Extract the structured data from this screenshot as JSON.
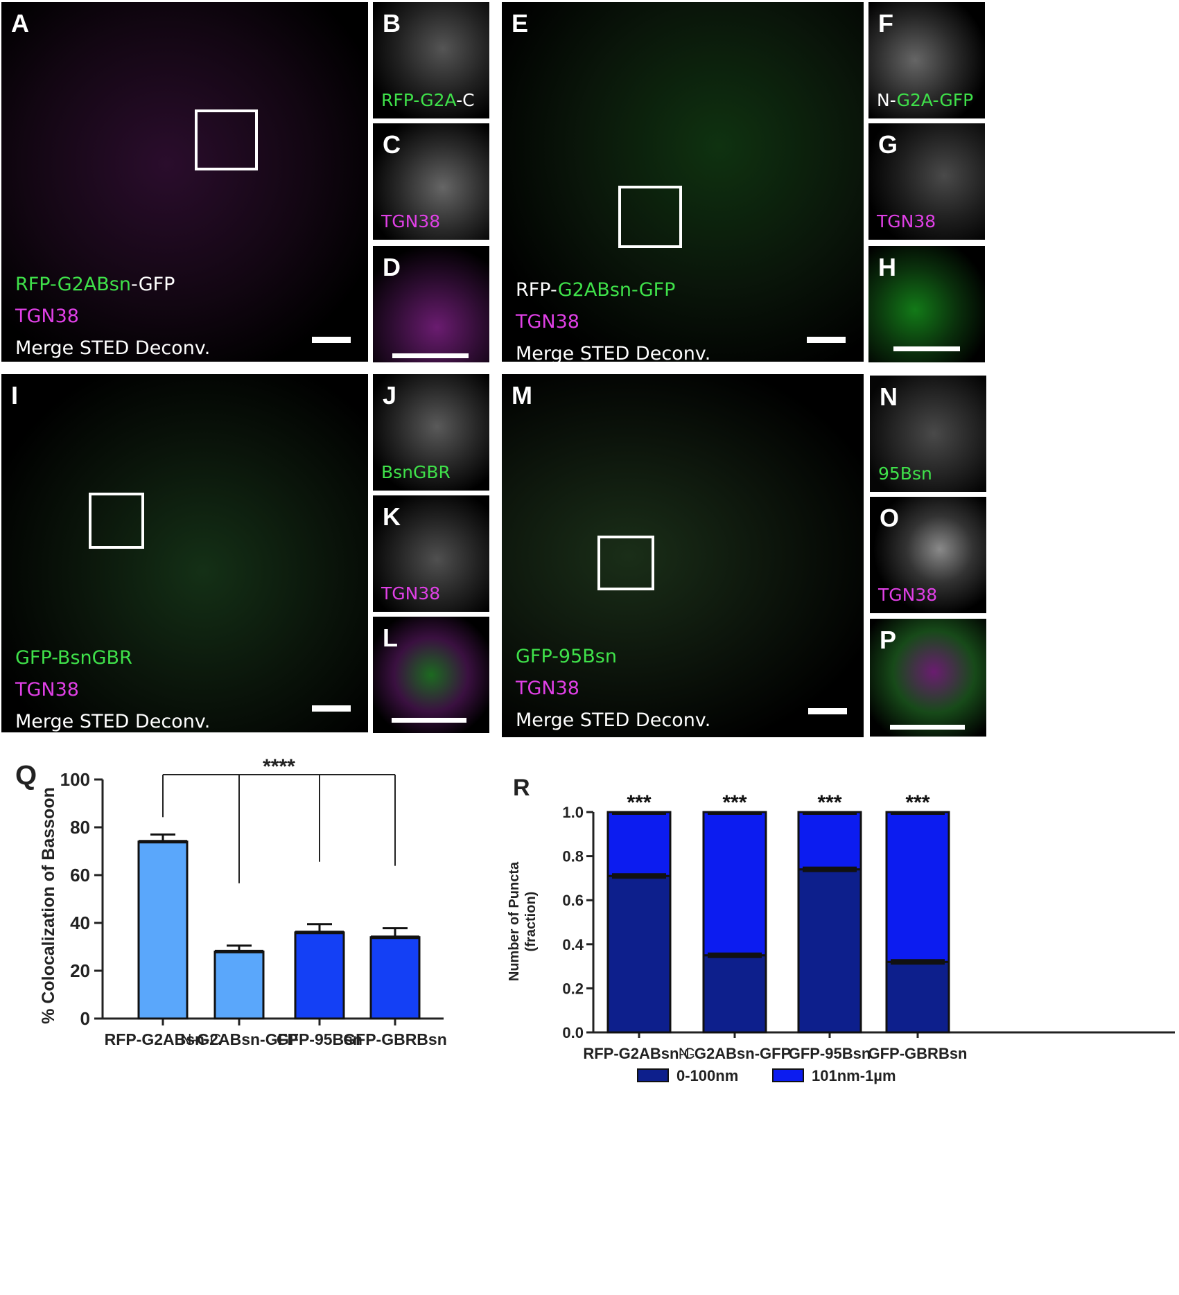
{
  "panels": {
    "A": {
      "label": "A",
      "line1_a": "RFP-G2ABsn",
      "line1_b": "-GFP",
      "line2": "TGN38",
      "line3": "Merge STED Deconv."
    },
    "B": {
      "label": "B",
      "caption_a": "RFP-",
      "caption_b": "G2A",
      "caption_c": "-C"
    },
    "C": {
      "label": "C",
      "caption": "TGN38"
    },
    "D": {
      "label": "D"
    },
    "E": {
      "label": "E",
      "line1_a": "RFP-",
      "line1_b": "G2ABsn-GFP",
      "line2": "TGN38",
      "line3": "Merge STED Deconv."
    },
    "F": {
      "label": "F",
      "caption_a": "N-",
      "caption_b": "G2A-GFP"
    },
    "G": {
      "label": "G",
      "caption": "TGN38"
    },
    "H": {
      "label": "H"
    },
    "I": {
      "label": "I",
      "line1": "GFP-BsnGBR",
      "line2": "TGN38",
      "line3": "Merge STED Deconv."
    },
    "J": {
      "label": "J",
      "caption": "BsnGBR"
    },
    "K": {
      "label": "K",
      "caption": "TGN38"
    },
    "L": {
      "label": "L"
    },
    "M": {
      "label": "M",
      "line1": "GFP-95Bsn",
      "line2": "TGN38",
      "line3": "Merge STED Deconv."
    },
    "N": {
      "label": "N",
      "caption": "95Bsn"
    },
    "O": {
      "label": "O",
      "caption": "TGN38"
    },
    "P": {
      "label": "P"
    }
  },
  "colors": {
    "green": "#3fe14a",
    "magenta": "#e040e6",
    "bar_light_blue": "#5aa7fb",
    "bar_blue": "#1440f5",
    "stack_dark": "#0d1f8c",
    "stack_blue": "#0c1cf0"
  },
  "chart_data": [
    {
      "type": "bar",
      "panel_label": "Q",
      "title": "",
      "xlabel": "",
      "ylabel": "% Colocalization of Bassoon",
      "ylim": [
        0,
        100
      ],
      "yticks": [
        0,
        20,
        40,
        60,
        80,
        100
      ],
      "categories": [
        {
          "a": "RFP-G2ABsn",
          "b": "-C"
        },
        {
          "a": "N-",
          "b": "G2ABsn-GFP"
        },
        {
          "a": "GFP-95Bsn",
          "b": ""
        },
        {
          "a": "GFP-GBRBsn",
          "b": ""
        }
      ],
      "values": [
        74,
        28,
        36,
        34
      ],
      "errors": [
        3,
        2.5,
        3.5,
        3.8
      ],
      "bar_colors": [
        "#5aa7fb",
        "#5aa7fb",
        "#1440f5",
        "#1440f5"
      ],
      "significance": "****"
    },
    {
      "type": "bar",
      "stacked": true,
      "panel_label": "R",
      "title": "",
      "xlabel": "",
      "ylabel_line1": "Number of Puncta",
      "ylabel_line2": "(fraction)",
      "ylim": [
        0,
        1.0
      ],
      "yticks": [
        "0.0",
        "0.2",
        "0.4",
        "0.6",
        "0.8",
        "1.0"
      ],
      "categories": [
        {
          "a": "RFP-G2ABsn",
          "b": "-C"
        },
        {
          "a": "N-",
          "b": "G2ABsn-GFP"
        },
        {
          "a": "GFP-95Bsn",
          "b": ""
        },
        {
          "a": "GFP-GBRBsn",
          "b": ""
        }
      ],
      "series": [
        {
          "name": "0-100nm",
          "values": [
            0.71,
            0.35,
            0.74,
            0.32
          ],
          "color": "#0d1f8c"
        },
        {
          "name": "101nm-1µm",
          "values": [
            0.29,
            0.65,
            0.26,
            0.68
          ],
          "color": "#0c1cf0"
        }
      ],
      "significance": [
        "***",
        "***",
        "***",
        "***"
      ],
      "legend_position": "bottom"
    }
  ]
}
